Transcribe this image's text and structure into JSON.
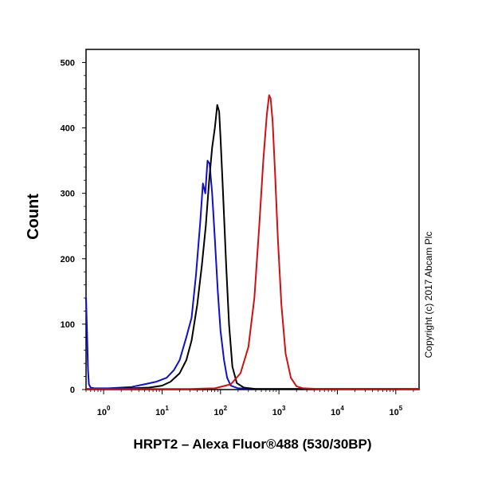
{
  "chart_data": {
    "type": "line",
    "title": "",
    "xlabel": "HRPT2 – Alexa Fluor®488 (530/30BP)",
    "ylabel": "Count",
    "x_scale": "log",
    "xlim": [
      0.5,
      250000
    ],
    "ylim": [
      0,
      520
    ],
    "y_ticks": [
      0,
      100,
      200,
      300,
      400,
      500
    ],
    "y_tick_labels": [
      "0",
      "100",
      "200",
      "300",
      "400",
      "500"
    ],
    "x_ticks": [
      1,
      10,
      100,
      1000,
      10000,
      100000
    ],
    "x_tick_labels": [
      {
        "base": "10",
        "exp": "0"
      },
      {
        "base": "10",
        "exp": "1"
      },
      {
        "base": "10",
        "exp": "2"
      },
      {
        "base": "10",
        "exp": "3"
      },
      {
        "base": "10",
        "exp": "4"
      },
      {
        "base": "10",
        "exp": "5"
      }
    ],
    "grid": false,
    "legend": "none",
    "annotation": "Copyright (c) 2017 Abcam Plc",
    "series": [
      {
        "color": "#1010c8",
        "x": [
          0.5,
          0.52,
          0.54,
          0.56,
          0.6,
          0.7,
          0.9,
          1.2,
          2,
          3,
          5,
          8,
          12,
          16,
          20,
          26,
          32,
          38,
          45,
          50,
          55,
          60,
          65,
          72,
          80,
          90,
          100,
          115,
          130,
          150,
          200,
          400,
          250000
        ],
        "y": [
          140,
          90,
          30,
          8,
          3,
          2,
          2,
          2,
          3,
          4,
          8,
          12,
          18,
          30,
          45,
          80,
          110,
          175,
          255,
          315,
          300,
          350,
          345,
          300,
          230,
          150,
          90,
          45,
          18,
          6,
          2,
          1,
          1
        ]
      },
      {
        "color": "#000000",
        "x": [
          0.5,
          1,
          3,
          6,
          10,
          14,
          20,
          26,
          32,
          40,
          48,
          56,
          64,
          72,
          80,
          88,
          95,
          100,
          110,
          125,
          140,
          160,
          190,
          250,
          400,
          250000
        ],
        "y": [
          1,
          1,
          2,
          3,
          6,
          12,
          25,
          45,
          75,
          130,
          190,
          250,
          320,
          370,
          400,
          435,
          425,
          385,
          305,
          190,
          100,
          35,
          10,
          3,
          1,
          1
        ]
      },
      {
        "color": "#d01010",
        "x": [
          0.5,
          30,
          80,
          150,
          220,
          300,
          380,
          460,
          540,
          620,
          680,
          720,
          780,
          860,
          960,
          1100,
          1300,
          1600,
          2000,
          2600,
          5000,
          250000
        ],
        "y": [
          1,
          1,
          2,
          8,
          25,
          65,
          140,
          250,
          350,
          420,
          450,
          445,
          410,
          330,
          230,
          130,
          55,
          18,
          5,
          2,
          1,
          1
        ]
      }
    ]
  }
}
